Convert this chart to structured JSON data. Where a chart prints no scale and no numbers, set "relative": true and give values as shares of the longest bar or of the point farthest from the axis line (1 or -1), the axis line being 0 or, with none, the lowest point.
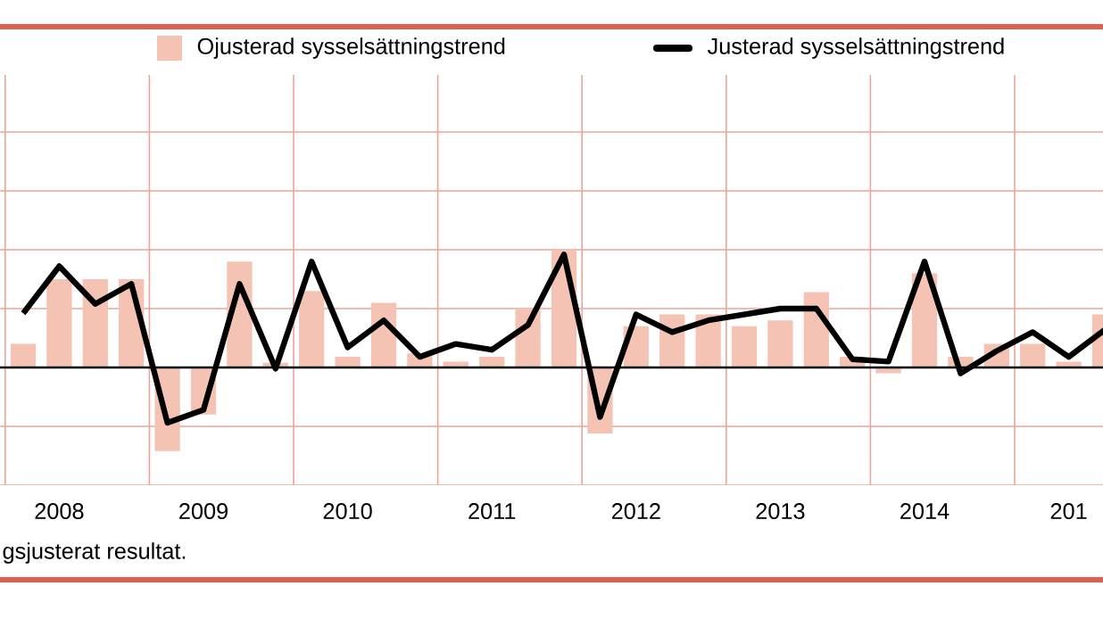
{
  "chart_data": {
    "type": "bar",
    "relative": true,
    "categories": [
      null,
      "2008",
      null,
      null,
      null,
      "2009",
      null,
      null,
      null,
      "2010",
      null,
      null,
      null,
      "2011",
      null,
      null,
      null,
      "2012",
      null,
      null,
      null,
      "2013",
      null,
      null,
      null,
      "2014",
      null,
      null,
      null,
      "201",
      null
    ],
    "series": [
      {
        "name": "Ojusterad sysselsättningstrend",
        "type": "bar",
        "color": "#f4c3b4",
        "values": [
          0.2,
          0.75,
          0.75,
          0.75,
          -0.71,
          -0.4,
          0.9,
          0.04,
          0.65,
          0.09,
          0.55,
          0.12,
          0.05,
          0.09,
          0.5,
          1,
          -0.56,
          0.35,
          0.45,
          0.45,
          0.35,
          0.4,
          0.64,
          0.09,
          -0.05,
          0.8,
          0.09,
          0.2,
          0.2,
          0.05,
          0.45
        ]
      },
      {
        "name": "Justerad sysselsättningstrend",
        "type": "line",
        "color": "#000000",
        "values": [
          0.46,
          0.86,
          0.54,
          0.71,
          -0.47,
          -0.36,
          0.71,
          -0.01,
          0.9,
          0.17,
          0.4,
          0.09,
          0.2,
          0.15,
          0.36,
          0.96,
          -0.42,
          0.45,
          0.3,
          0.4,
          0.45,
          0.5,
          0.5,
          0.07,
          0.05,
          0.9,
          -0.05,
          0.14,
          0.3,
          0.09,
          0.32
        ]
      }
    ],
    "grid": true,
    "legend": "top right",
    "marker": "none",
    "line_style": "solid",
    "annotations": [
      "gsjusterat resultat."
    ]
  }
}
